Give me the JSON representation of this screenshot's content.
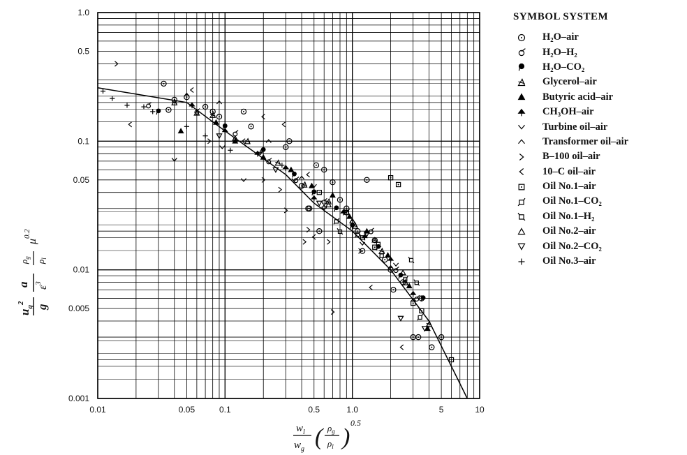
{
  "chart_data": {
    "type": "scatter",
    "title": "",
    "xscale": "log",
    "yscale": "log",
    "xlim": [
      0.01,
      10
    ],
    "ylim": [
      0.001,
      1.0
    ],
    "grid": true,
    "x_tick_labels": [
      {
        "v": 0.01,
        "t": "0.01"
      },
      {
        "v": 0.05,
        "t": "0.05"
      },
      {
        "v": 0.1,
        "t": "0.1"
      },
      {
        "v": 0.5,
        "t": "0.5"
      },
      {
        "v": 1.0,
        "t": "1.0"
      },
      {
        "v": 5,
        "t": "5"
      },
      {
        "v": 10,
        "t": "10"
      }
    ],
    "y_tick_labels": [
      {
        "v": 1.0,
        "t": "1.0"
      },
      {
        "v": 0.5,
        "t": "0.5"
      },
      {
        "v": 0.1,
        "t": "0.1"
      },
      {
        "v": 0.05,
        "t": "0.05"
      },
      {
        "v": 0.01,
        "t": "0.01"
      },
      {
        "v": 0.005,
        "t": "0.005"
      },
      {
        "v": 0.001,
        "t": "0.001"
      }
    ],
    "trend_line": [
      [
        0.01,
        0.26
      ],
      [
        0.05,
        0.2
      ],
      [
        0.1,
        0.12
      ],
      [
        0.3,
        0.055
      ],
      [
        0.5,
        0.033
      ],
      [
        1.0,
        0.02
      ],
      [
        2.0,
        0.01
      ],
      [
        4.0,
        0.004
      ],
      [
        8.0,
        0.001
      ]
    ],
    "legend_title": "SYMBOL SYSTEM",
    "legend_position": "right",
    "series": [
      {
        "name": "H₂O–air",
        "marker": "circle-dot",
        "points": [
          [
            0.033,
            0.28
          ],
          [
            0.036,
            0.175
          ],
          [
            0.04,
            0.21
          ],
          [
            0.05,
            0.22
          ],
          [
            0.07,
            0.185
          ],
          [
            0.08,
            0.17
          ],
          [
            0.09,
            0.155
          ],
          [
            0.14,
            0.17
          ],
          [
            0.16,
            0.13
          ],
          [
            0.3,
            0.09
          ],
          [
            0.32,
            0.1
          ],
          [
            0.4,
            0.045
          ],
          [
            0.45,
            0.03
          ],
          [
            0.46,
            0.03
          ],
          [
            0.52,
            0.065
          ],
          [
            0.55,
            0.02
          ],
          [
            0.6,
            0.06
          ],
          [
            0.7,
            0.048
          ],
          [
            0.8,
            0.035
          ],
          [
            0.9,
            0.03
          ],
          [
            1.1,
            0.02
          ],
          [
            1.3,
            0.05
          ],
          [
            1.5,
            0.017
          ],
          [
            1.8,
            0.012
          ],
          [
            2.0,
            0.01
          ],
          [
            2.1,
            0.007
          ],
          [
            2.5,
            0.008
          ],
          [
            3.0,
            0.003
          ],
          [
            3.3,
            0.003
          ],
          [
            4.2,
            0.0025
          ],
          [
            5.0,
            0.003
          ],
          [
            3.5,
            0.006
          ],
          [
            1.2,
            0.014
          ]
        ]
      },
      {
        "name": "H₂O–H₂",
        "marker": "sigma",
        "points": [
          [
            0.025,
            0.19
          ],
          [
            0.06,
            0.17
          ],
          [
            0.12,
            0.115
          ],
          [
            0.22,
            0.07
          ],
          [
            0.36,
            0.05
          ],
          [
            0.6,
            0.034
          ],
          [
            0.9,
            0.028
          ],
          [
            1.4,
            0.02
          ],
          [
            2.2,
            0.01
          ],
          [
            3.2,
            0.006
          ]
        ]
      },
      {
        "name": "H₂O–CO₂",
        "marker": "dot-stem",
        "points": [
          [
            0.03,
            0.17
          ],
          [
            0.1,
            0.13
          ],
          [
            0.2,
            0.085
          ],
          [
            0.35,
            0.055
          ],
          [
            0.5,
            0.04
          ],
          [
            0.75,
            0.03
          ],
          [
            1.0,
            0.022
          ],
          [
            1.6,
            0.015
          ],
          [
            2.4,
            0.009
          ],
          [
            3.6,
            0.006
          ]
        ]
      },
      {
        "name": "Glycerol–air",
        "marker": "tri-cross",
        "points": [
          [
            0.04,
            0.2
          ],
          [
            0.08,
            0.16
          ],
          [
            0.15,
            0.1
          ],
          [
            0.26,
            0.068
          ],
          [
            0.42,
            0.046
          ],
          [
            0.65,
            0.034
          ],
          [
            1.05,
            0.022
          ],
          [
            1.7,
            0.014
          ],
          [
            2.6,
            0.008
          ],
          [
            4.0,
            0.0038
          ]
        ]
      },
      {
        "name": "Butyric acid–air",
        "marker": "tri-filled",
        "points": [
          [
            0.045,
            0.12
          ],
          [
            0.085,
            0.14
          ],
          [
            0.12,
            0.1
          ],
          [
            0.2,
            0.075
          ],
          [
            0.33,
            0.06
          ],
          [
            0.48,
            0.045
          ],
          [
            0.7,
            0.038
          ],
          [
            0.95,
            0.026
          ],
          [
            1.3,
            0.02
          ],
          [
            1.9,
            0.013
          ],
          [
            2.8,
            0.0075
          ],
          [
            3.9,
            0.0035
          ]
        ]
      },
      {
        "name": "CH₃OH–air",
        "marker": "spade",
        "points": [
          [
            0.055,
            0.19
          ],
          [
            0.1,
            0.12
          ],
          [
            0.18,
            0.08
          ],
          [
            0.3,
            0.062
          ],
          [
            0.5,
            0.036
          ],
          [
            0.85,
            0.028
          ],
          [
            1.25,
            0.018
          ],
          [
            2.0,
            0.012
          ],
          [
            3.0,
            0.0065
          ]
        ]
      },
      {
        "name": "Turbine oil–air",
        "marker": "vee",
        "points": [
          [
            0.04,
            0.072
          ],
          [
            0.095,
            0.09
          ],
          [
            0.14,
            0.05
          ],
          [
            0.5,
            0.045
          ],
          [
            0.35,
            0.05
          ],
          [
            0.6,
            0.03
          ],
          [
            1.2,
            0.016
          ],
          [
            2.2,
            0.011
          ]
        ]
      },
      {
        "name": "Transformer oil–air",
        "marker": "caret",
        "points": [
          [
            0.05,
            0.23
          ],
          [
            0.09,
            0.2
          ],
          [
            0.22,
            0.1
          ],
          [
            0.4,
            0.052
          ],
          [
            0.6,
            0.031
          ],
          [
            1.0,
            0.024
          ],
          [
            2.0,
            0.0105
          ],
          [
            3.0,
            0.0058
          ]
        ]
      },
      {
        "name": "B–100 oil–air",
        "marker": "gt",
        "points": [
          [
            0.014,
            0.4
          ],
          [
            0.075,
            0.1
          ],
          [
            0.2,
            0.05
          ],
          [
            0.27,
            0.042
          ],
          [
            0.3,
            0.029
          ],
          [
            0.42,
            0.0165
          ],
          [
            0.45,
            0.0205
          ],
          [
            0.65,
            0.0165
          ],
          [
            0.7,
            0.0047
          ],
          [
            1.15,
            0.014
          ]
        ]
      },
      {
        "name": "10–C oil–air",
        "marker": "lt",
        "points": [
          [
            0.018,
            0.135
          ],
          [
            0.055,
            0.25
          ],
          [
            0.14,
            0.1
          ],
          [
            0.2,
            0.155
          ],
          [
            0.29,
            0.135
          ],
          [
            0.45,
            0.055
          ],
          [
            0.5,
            0.018
          ],
          [
            1.4,
            0.0073
          ],
          [
            2.45,
            0.0025
          ]
        ]
      },
      {
        "name": "Oil No.1–air",
        "marker": "square-dot",
        "points": [
          [
            0.55,
            0.04
          ],
          [
            0.9,
            0.028
          ],
          [
            1.5,
            0.015
          ],
          [
            2.0,
            0.052
          ],
          [
            2.3,
            0.046
          ],
          [
            3.0,
            0.0055
          ],
          [
            3.5,
            0.0048
          ],
          [
            6.0,
            0.002
          ]
        ]
      },
      {
        "name": "Oil No.1–CO₂",
        "marker": "square-flag",
        "points": [
          [
            0.75,
            0.024
          ],
          [
            1.1,
            0.019
          ],
          [
            1.7,
            0.013
          ],
          [
            2.6,
            0.0085
          ],
          [
            3.4,
            0.0043
          ]
        ]
      },
      {
        "name": "Oil No.1–H₂",
        "marker": "square-hook",
        "points": [
          [
            0.8,
            0.02
          ],
          [
            1.2,
            0.018
          ],
          [
            1.6,
            0.016
          ],
          [
            2.9,
            0.012
          ],
          [
            3.2,
            0.008
          ]
        ]
      },
      {
        "name": "Oil No.2–air",
        "marker": "tri-open",
        "points": [
          [
            0.06,
            0.165
          ],
          [
            0.12,
            0.105
          ],
          [
            0.65,
            0.032
          ],
          [
            1.0,
            0.024
          ],
          [
            1.5,
            0.017
          ],
          [
            2.5,
            0.0095
          ]
        ]
      },
      {
        "name": "Oil No.2–CO₂",
        "marker": "tri-down-open",
        "points": [
          [
            0.09,
            0.11
          ],
          [
            0.25,
            0.06
          ],
          [
            0.55,
            0.033
          ],
          [
            1.3,
            0.019
          ],
          [
            2.4,
            0.0042
          ],
          [
            3.7,
            0.0035
          ]
        ]
      },
      {
        "name": "Oil No.3–air",
        "marker": "plus",
        "points": [
          [
            0.011,
            0.245
          ],
          [
            0.013,
            0.215
          ],
          [
            0.017,
            0.19
          ],
          [
            0.023,
            0.185
          ],
          [
            0.027,
            0.17
          ],
          [
            0.05,
            0.13
          ],
          [
            0.07,
            0.11
          ],
          [
            0.11,
            0.085
          ],
          [
            0.19,
            0.082
          ],
          [
            0.28,
            0.065
          ]
        ]
      }
    ]
  }
}
